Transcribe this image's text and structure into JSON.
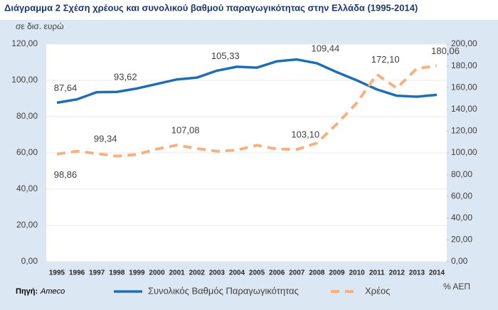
{
  "chart_data": {
    "type": "line",
    "title": "Διάγραμμα  2 Σχέση χρέους και συνολικού βαθμού παραγωγικότητας στην Ελλάδα (1995-2014)",
    "y_label": "σε  δισ. ευρώ",
    "y2_label": "% ΑΕΠ",
    "source_label": "Πηγή:",
    "source": "Ameco",
    "categories": [
      "1995",
      "1996",
      "1997",
      "1998",
      "1999",
      "2000",
      "2001",
      "2002",
      "2003",
      "2004",
      "2005",
      "2006",
      "2007",
      "2008",
      "2009",
      "2010",
      "2011",
      "2012",
      "2013",
      "2014"
    ],
    "series": [
      {
        "name": "Συνολικός Βαθμός Παραγωγικότητας",
        "color": "#1f6db5",
        "dashed": false,
        "values": [
          87.64,
          89.5,
          93.5,
          93.62,
          95.5,
          98,
          100.5,
          101.5,
          105.33,
          107.5,
          107,
          110.5,
          111.5,
          109.44,
          104.5,
          100,
          95,
          91.5,
          91,
          92
        ],
        "value_labels": [
          "87,64",
          null,
          null,
          "93,62",
          null,
          null,
          null,
          null,
          "105,33",
          null,
          null,
          null,
          null,
          "109,44",
          null,
          null,
          null,
          null,
          null,
          null
        ]
      },
      {
        "name": "Χρέος",
        "color": "#f4b183",
        "dashed": true,
        "axis": "y2",
        "values": [
          98.86,
          101.5,
          99.34,
          97,
          98.5,
          103.5,
          107.08,
          104,
          101.5,
          102.5,
          107,
          103.5,
          103.1,
          109,
          126.5,
          146,
          172.1,
          159.5,
          177.5,
          180.06
        ],
        "value_labels": [
          "98,86",
          null,
          "99,34",
          null,
          null,
          null,
          "107,08",
          null,
          null,
          null,
          null,
          null,
          "103,10",
          null,
          null,
          null,
          "172,10",
          null,
          null,
          "180,06"
        ]
      }
    ],
    "ylim": [
      0,
      120
    ],
    "yticks": [
      {
        "value": 0,
        "label": "0,00"
      },
      {
        "value": 20,
        "label": "20,00"
      },
      {
        "value": 40,
        "label": "40,00"
      },
      {
        "value": 60,
        "label": "60,00"
      },
      {
        "value": 80,
        "label": "80,00"
      },
      {
        "value": 100,
        "label": "100,00"
      },
      {
        "value": 120,
        "label": "120,00"
      }
    ],
    "y2lim": [
      0,
      200
    ],
    "y2ticks": [
      {
        "value": 0,
        "label": "0,00"
      },
      {
        "value": 20,
        "label": "20,00"
      },
      {
        "value": 40,
        "label": "40,00"
      },
      {
        "value": 60,
        "label": "60,00"
      },
      {
        "value": 80,
        "label": "80,00"
      },
      {
        "value": 100,
        "label": "100,00"
      },
      {
        "value": 120,
        "label": "120,00"
      },
      {
        "value": 140,
        "label": "140,00"
      },
      {
        "value": 160,
        "label": "160,00"
      },
      {
        "value": 180,
        "label": "180,00"
      },
      {
        "value": 200,
        "label": "200,00"
      }
    ],
    "grid": true
  }
}
